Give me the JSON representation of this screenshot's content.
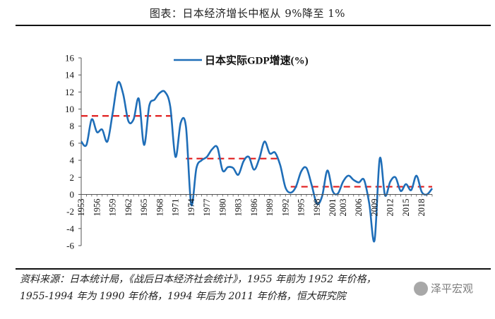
{
  "header": {
    "title": "图表：日本经济增长中枢从 9%降至 1%"
  },
  "source": {
    "line1": "资料来源：日本统计局，《战后日本经济社会统计》，1955 年前为 1952 年价格，",
    "line2": "1955-1994 年为 1990 年价格，1994 年后为 2011 年价格，恒大研究院"
  },
  "watermark": {
    "text": "泽平宏观",
    "logo": "wechat-logo-icon"
  },
  "chart_data": {
    "type": "line",
    "legend": {
      "label": "日本实际GDP增速(%)",
      "position": "top"
    },
    "ylim": [
      -6,
      16
    ],
    "yticks": [
      "16",
      "14",
      "12",
      "10",
      "8",
      "6",
      "4",
      "2",
      "0",
      "-2",
      "-4",
      "-6"
    ],
    "xticks": [
      "1953",
      "1956",
      "1959",
      "1962",
      "1965",
      "1968",
      "1971",
      "1974",
      "1977",
      "1980",
      "1983",
      "1986",
      "1989",
      "1992",
      "1995",
      "1998",
      "2001",
      "2003",
      "2006",
      "2009",
      "2012",
      "2015",
      "2018"
    ],
    "series": [
      {
        "name": "日本实际GDP增速(%)",
        "color": "#1f6eb8",
        "x": [
          1953,
          1954,
          1955,
          1956,
          1957,
          1958,
          1959,
          1960,
          1961,
          1962,
          1963,
          1964,
          1965,
          1966,
          1967,
          1968,
          1969,
          1970,
          1971,
          1972,
          1973,
          1974,
          1975,
          1976,
          1977,
          1978,
          1979,
          1980,
          1981,
          1982,
          1983,
          1984,
          1985,
          1986,
          1987,
          1988,
          1989,
          1990,
          1991,
          1992,
          1993,
          1994,
          1995,
          1996,
          1997,
          1998,
          1999,
          2000,
          2001,
          2002,
          2003,
          2004,
          2005,
          2006,
          2007,
          2008,
          2009,
          2010,
          2011,
          2012,
          2013,
          2014,
          2015,
          2016,
          2017,
          2018,
          2019,
          2020
        ],
        "values": [
          6.2,
          5.8,
          8.8,
          7.3,
          7.6,
          6.2,
          9.5,
          13.1,
          11.8,
          8.6,
          8.8,
          11.2,
          5.8,
          10.4,
          11.1,
          11.9,
          12.0,
          10.3,
          4.4,
          8.4,
          7.9,
          -1.2,
          3.1,
          4.0,
          4.4,
          5.3,
          5.5,
          2.8,
          3.2,
          3.1,
          2.3,
          3.9,
          4.4,
          2.9,
          4.2,
          6.2,
          4.8,
          4.9,
          3.4,
          0.8,
          0.2,
          0.9,
          2.7,
          3.1,
          1.1,
          -1.1,
          -0.2,
          2.8,
          0.4,
          0.1,
          1.5,
          2.2,
          1.7,
          1.4,
          1.7,
          -1.1,
          -5.4,
          4.2,
          -0.1,
          1.5,
          2.0,
          0.4,
          1.2,
          0.5,
          2.2,
          0.3,
          0.0,
          0.7
        ]
      }
    ],
    "reference_lines": [
      {
        "value": 9.2,
        "from": 1953,
        "to": 1971,
        "color": "#e01c1c",
        "style": "dashed"
      },
      {
        "value": 4.2,
        "from": 1973,
        "to": 1991,
        "color": "#e01c1c",
        "style": "dashed"
      },
      {
        "value": 0.9,
        "from": 1993,
        "to": 2020,
        "color": "#e01c1c",
        "style": "dashed"
      }
    ]
  }
}
